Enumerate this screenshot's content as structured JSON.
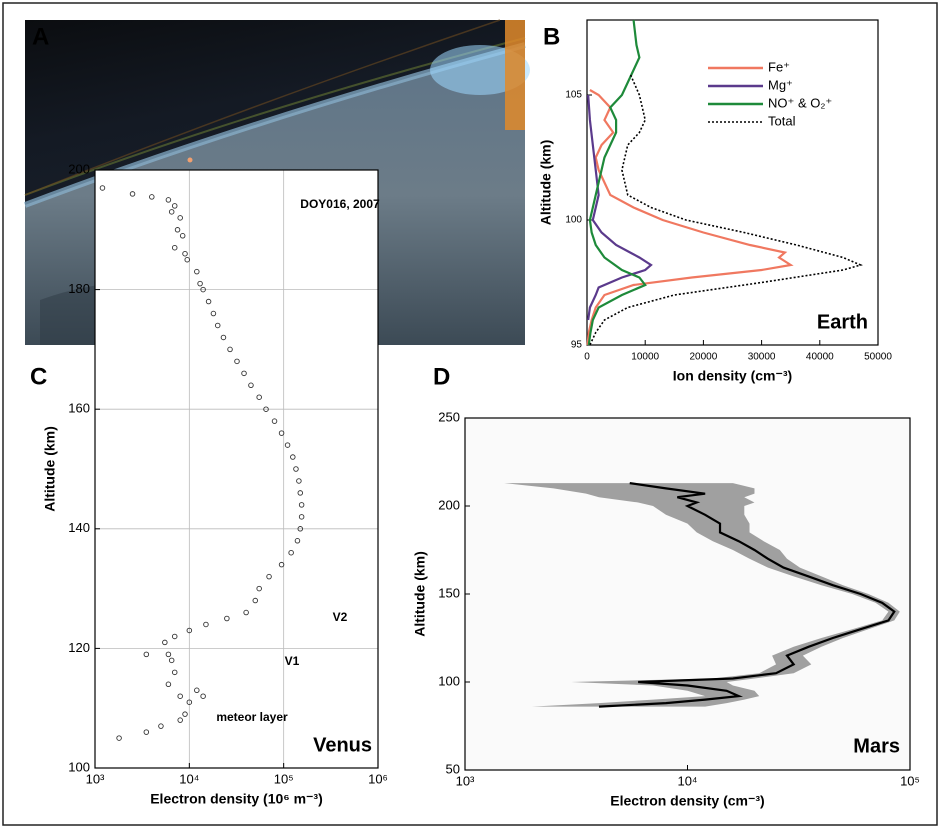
{
  "photo_panel": {
    "label": "A"
  },
  "chart_data": [
    {
      "type": "line",
      "panel_label": "B",
      "xlabel": "Ion density (cm⁻³)",
      "ylabel": "Altitude (km)",
      "annotation": "Earth",
      "xlim": [
        0,
        50000
      ],
      "ylim": [
        95,
        108
      ],
      "xticks": [
        0,
        10000,
        20000,
        30000,
        40000,
        50000
      ],
      "yticks": [
        95,
        100,
        105
      ],
      "grid": false,
      "legend": "upper right",
      "series": [
        {
          "name": "Fe⁺",
          "color": "#f07860",
          "style": "solid",
          "y": [
            105.2,
            105,
            104.5,
            104,
            103.5,
            103,
            102.5,
            102,
            101.5,
            101,
            100.5,
            100,
            99.5,
            99,
            98.7,
            98.5,
            98.2,
            98,
            97.7,
            97.4,
            97,
            96.5,
            96,
            95.5,
            95
          ],
          "x": [
            500,
            2000,
            4000,
            3000,
            4500,
            2500,
            1500,
            2000,
            3000,
            4000,
            8000,
            13000,
            20000,
            28000,
            34000,
            33000,
            35000,
            30000,
            18000,
            8000,
            3000,
            1500,
            800,
            300,
            100
          ]
        },
        {
          "name": "Mg⁺",
          "color": "#5b3a8c",
          "style": "solid",
          "y": [
            105,
            104,
            103,
            102,
            101,
            100,
            99.5,
            99,
            98.5,
            98.2,
            98,
            97.7,
            97.3,
            97,
            96.5,
            96
          ],
          "x": [
            200,
            500,
            1000,
            1500,
            2000,
            1000,
            2500,
            5000,
            9000,
            11000,
            10000,
            6000,
            2000,
            1500,
            500,
            200
          ]
        },
        {
          "name": "NO⁺ & O₂⁺",
          "color": "#1e8a3a",
          "style": "solid",
          "y": [
            108,
            107,
            106.5,
            106,
            105.5,
            105,
            104.5,
            104,
            103.5,
            103,
            102.5,
            102,
            101.5,
            101,
            100.5,
            100,
            99.5,
            99,
            98.5,
            98,
            97.7,
            97.4,
            97.2,
            97,
            96.5,
            96,
            95.5,
            95
          ],
          "x": [
            8000,
            8500,
            9000,
            8000,
            7000,
            6000,
            4000,
            5000,
            5000,
            4000,
            3000,
            2500,
            2000,
            1500,
            1000,
            500,
            800,
            1500,
            3000,
            6000,
            9000,
            10000,
            8000,
            6000,
            2000,
            1000,
            600,
            300
          ]
        },
        {
          "name": "Total",
          "color": "#000000",
          "style": "dotted",
          "y": [
            105.8,
            105,
            104,
            103.5,
            103,
            102,
            101,
            100.5,
            100,
            99.5,
            99,
            98.5,
            98.2,
            98,
            97.5,
            97,
            96.5,
            96,
            95.5,
            95
          ],
          "x": [
            7500,
            9000,
            10000,
            9000,
            7000,
            6000,
            7000,
            11000,
            17000,
            27000,
            36000,
            44000,
            47000,
            44000,
            30000,
            15000,
            7000,
            3000,
            1500,
            500
          ]
        }
      ]
    },
    {
      "type": "scatter",
      "panel_label": "C",
      "xlabel": "Electron density (10⁶ m⁻³)",
      "ylabel": "Altitude (km)",
      "annotations": [
        "DOY016, 2007",
        "V2",
        "V1",
        "meteor layer",
        "Venus"
      ],
      "xscale": "log",
      "xlim": [
        1000,
        1000000
      ],
      "ylim": [
        100,
        200
      ],
      "xticks": [
        {
          "value": 1000,
          "label": "10³"
        },
        {
          "value": 10000,
          "label": "10⁴"
        },
        {
          "value": 100000,
          "label": "10⁵"
        },
        {
          "value": 1000000,
          "label": "10⁶"
        }
      ],
      "yticks": [
        100,
        120,
        140,
        160,
        180,
        200
      ],
      "grid": true,
      "color": "#333333",
      "y": [
        197,
        196,
        195.5,
        195,
        194,
        193,
        192,
        190,
        189,
        187,
        186,
        185,
        183,
        181,
        180,
        178,
        176,
        174,
        172,
        170,
        168,
        166,
        164,
        162,
        160,
        158,
        156,
        154,
        152,
        150,
        148,
        146,
        144,
        142,
        140,
        138,
        136,
        134,
        132,
        130,
        128,
        126,
        125,
        124,
        123,
        122,
        121,
        119,
        119,
        118,
        116,
        114,
        113,
        112,
        112,
        111,
        109,
        108,
        107,
        106,
        105
      ],
      "x": [
        1200,
        2500,
        4000,
        6000,
        7000,
        6500,
        8000,
        7500,
        8500,
        7000,
        9000,
        9500,
        12000,
        13000,
        14000,
        16000,
        18000,
        20000,
        23000,
        27000,
        32000,
        38000,
        45000,
        55000,
        65000,
        80000,
        95000,
        110000,
        125000,
        135000,
        145000,
        150000,
        155000,
        155000,
        150000,
        140000,
        120000,
        95000,
        70000,
        55000,
        50000,
        40000,
        25000,
        15000,
        10000,
        7000,
        5500,
        6000,
        3500,
        6500,
        7000,
        6000,
        12000,
        14000,
        8000,
        10000,
        9000,
        8000,
        5000,
        3500,
        1800
      ]
    },
    {
      "type": "line",
      "panel_label": "D",
      "xlabel": "Electron density (cm⁻³)",
      "ylabel": "Altitude (km)",
      "annotation": "Mars",
      "xscale": "log",
      "xlim": [
        1000,
        100000
      ],
      "ylim": [
        50,
        250
      ],
      "xticks": [
        {
          "value": 1000,
          "label": "10³"
        },
        {
          "value": 10000,
          "label": "10⁴"
        },
        {
          "value": 100000,
          "label": "10⁵"
        }
      ],
      "yticks": [
        50,
        100,
        150,
        200,
        250
      ],
      "grid": false,
      "series": [
        {
          "color": "#000000",
          "band_color": "#a0a0a0",
          "y": [
            213,
            210,
            207,
            205,
            202,
            200,
            195,
            190,
            185,
            180,
            175,
            170,
            165,
            160,
            155,
            150,
            145,
            140,
            135,
            130,
            125,
            120,
            115,
            110,
            105,
            102,
            100,
            98,
            95,
            92,
            90,
            88,
            86
          ],
          "x": [
            5500,
            8000,
            12000,
            9000,
            11000,
            10000,
            12000,
            14000,
            14000,
            17000,
            20000,
            23000,
            27000,
            35000,
            45000,
            60000,
            75000,
            85000,
            80000,
            60000,
            45000,
            35000,
            28000,
            30000,
            25000,
            16000,
            6000,
            10000,
            15000,
            17000,
            12000,
            8000,
            4000
          ],
          "x_low": [
            1500,
            2500,
            3500,
            4000,
            6000,
            7000,
            8000,
            10000,
            11000,
            13000,
            16000,
            19000,
            23000,
            30000,
            40000,
            55000,
            70000,
            80000,
            75000,
            55000,
            40000,
            30000,
            24000,
            25000,
            21000,
            13000,
            3000,
            7000,
            10000,
            12000,
            7000,
            4000,
            2000
          ],
          "x_high": [
            16000,
            20000,
            20000,
            18000,
            20000,
            18000,
            18000,
            19000,
            19000,
            22000,
            26000,
            28000,
            32000,
            40000,
            50000,
            65000,
            80000,
            90000,
            85000,
            65000,
            50000,
            40000,
            33000,
            36000,
            30000,
            20000,
            15000,
            16000,
            20000,
            21000,
            18000,
            15000,
            12000
          ]
        }
      ]
    }
  ]
}
